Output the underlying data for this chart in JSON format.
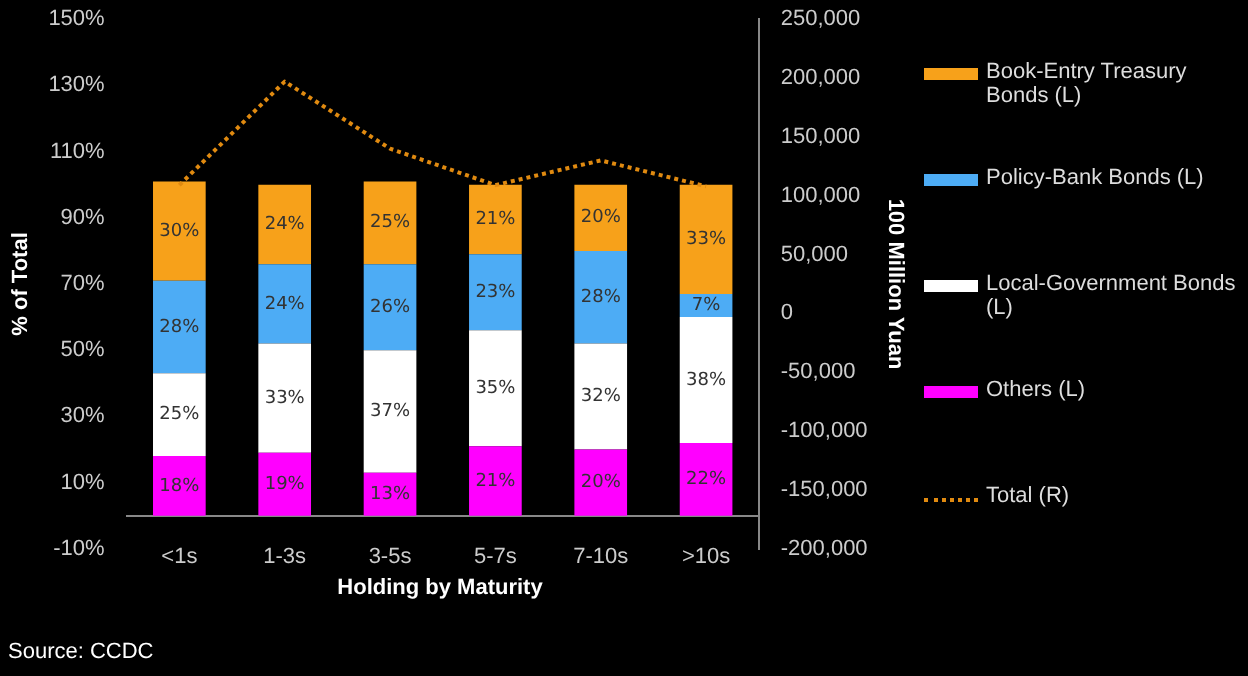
{
  "chart_data": {
    "type": "bar",
    "stacked": true,
    "xlabel": "Holding by Maturity",
    "ylabel": "% of Total",
    "y2label": "100 Million Yuan",
    "categories": [
      "<1s",
      "1-3s",
      "3-5s",
      "5-7s",
      "7-10s",
      ">10s"
    ],
    "series": [
      {
        "name": "Others (L)",
        "color": "#ff00ff",
        "values": [
          18,
          19,
          13,
          21,
          20,
          22
        ],
        "value_labels": [
          "18%",
          "19%",
          "13%",
          "21%",
          "20%",
          "22%"
        ]
      },
      {
        "name": "Local-Government Bonds (L)",
        "color": "#ffffff",
        "values": [
          25,
          33,
          37,
          35,
          32,
          38
        ],
        "value_labels": [
          "25%",
          "33%",
          "37%",
          "35%",
          "32%",
          "38%"
        ]
      },
      {
        "name": "Policy-Bank Bonds (L)",
        "color": "#4dacf5",
        "values": [
          28,
          24,
          26,
          23,
          28,
          7
        ],
        "value_labels": [
          "28%",
          "24%",
          "26%",
          "23%",
          "28%",
          "7%"
        ]
      },
      {
        "name": "Book-Entry Treasury Bonds (L)",
        "color": "#f7a11a",
        "values": [
          30,
          24,
          25,
          21,
          20,
          33
        ],
        "value_labels": [
          "30%",
          "24%",
          "25%",
          "21%",
          "20%",
          "33%"
        ]
      },
      {
        "name": "Total (R)",
        "type": "line",
        "axis": "y2",
        "line_style": "dotted",
        "marker": "none",
        "color": "#e08a10",
        "values": [
          109000,
          197000,
          140000,
          109000,
          130000,
          108000
        ]
      }
    ],
    "ylim": [
      -10,
      150
    ],
    "yticks": [
      {
        "value": -10,
        "label": "-10%"
      },
      {
        "value": 10,
        "label": "10%"
      },
      {
        "value": 30,
        "label": "30%"
      },
      {
        "value": 50,
        "label": "50%"
      },
      {
        "value": 70,
        "label": "70%"
      },
      {
        "value": 90,
        "label": "90%"
      },
      {
        "value": 110,
        "label": "110%"
      },
      {
        "value": 130,
        "label": "130%"
      },
      {
        "value": 150,
        "label": "150%"
      }
    ],
    "y2lim": [
      -200000,
      250000
    ],
    "y2ticks": [
      {
        "value": -200000,
        "label": "-200,000"
      },
      {
        "value": -150000,
        "label": "-150,000"
      },
      {
        "value": -100000,
        "label": "-100,000"
      },
      {
        "value": -50000,
        "label": "-50,000"
      },
      0,
      {
        "value": 50000,
        "label": "50,000"
      },
      {
        "value": 100000,
        "label": "100,000"
      },
      {
        "value": 150000,
        "label": "150,000"
      },
      {
        "value": 200000,
        "label": "200,000"
      },
      {
        "value": 250000,
        "label": "250,000"
      }
    ],
    "grid": false,
    "legend": "right",
    "annotations": [
      "Source: CCDC"
    ]
  }
}
